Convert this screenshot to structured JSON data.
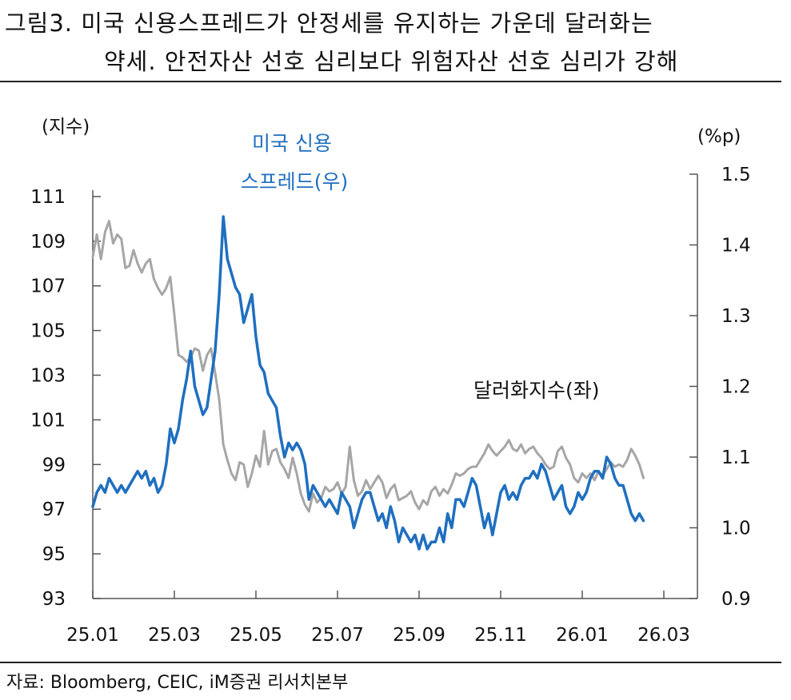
{
  "header": {
    "line1": "그림3.  미국  신용스프레드가  안정세를  유지하는  가운데  달러화는",
    "line2": "약세. 안전자산 선호 심리보다 위험자산 선호 심리가 강해"
  },
  "footer": {
    "source": "자료: Bloomberg, CEIC, iM증권 리서치본부"
  },
  "colors": {
    "dxy": "#a6a6a6",
    "spread": "#1f6fc0",
    "axis": "#555555",
    "text": "#111111"
  },
  "chart_data": {
    "type": "line",
    "x_ticks": [
      "25.01",
      "25.03",
      "25.05",
      "25.07",
      "25.09",
      "25.11",
      "26.01",
      "26.03"
    ],
    "y_left": {
      "label": "(지수)",
      "ticks": [
        "111",
        "109",
        "107",
        "105",
        "103",
        "101",
        "99",
        "97",
        "95",
        "93"
      ],
      "range": [
        93,
        112
      ]
    },
    "y_right": {
      "label": "(%p)",
      "ticks": [
        "1.5",
        "1.4",
        "1.3",
        "1.2",
        "1.1",
        "1.0",
        "0.9"
      ],
      "range": [
        0.9,
        1.5
      ]
    },
    "x_range_months": [
      0,
      15
    ],
    "series": [
      {
        "name": "달러화지수(좌)",
        "label": "달러화지수(좌)",
        "axis": "left",
        "x": [
          0.0,
          0.1,
          0.2,
          0.3,
          0.4,
          0.5,
          0.6,
          0.7,
          0.8,
          0.9,
          1.0,
          1.1,
          1.2,
          1.3,
          1.4,
          1.5,
          1.6,
          1.7,
          1.8,
          1.9,
          2.0,
          2.1,
          2.2,
          2.3,
          2.4,
          2.5,
          2.6,
          2.7,
          2.8,
          2.9,
          3.0,
          3.1,
          3.2,
          3.3,
          3.4,
          3.5,
          3.6,
          3.7,
          3.8,
          3.9,
          4.0,
          4.1,
          4.2,
          4.3,
          4.4,
          4.5,
          4.6,
          4.7,
          4.8,
          4.9,
          5.0,
          5.1,
          5.2,
          5.3,
          5.4,
          5.5,
          5.6,
          5.7,
          5.8,
          5.9,
          6.0,
          6.1,
          6.2,
          6.3,
          6.4,
          6.5,
          6.6,
          6.7,
          6.8,
          6.9,
          7.0,
          7.1,
          7.2,
          7.3,
          7.4,
          7.5,
          7.6,
          7.7,
          7.8,
          7.9,
          8.0,
          8.1,
          8.2,
          8.3,
          8.4,
          8.5,
          8.6,
          8.7,
          8.8,
          8.9,
          9.0,
          9.1,
          9.2,
          9.3,
          9.4,
          9.5,
          9.6,
          9.7,
          9.8,
          9.9,
          10.0,
          10.1,
          10.2,
          10.3,
          10.4,
          10.5,
          10.6,
          10.7,
          10.8,
          10.9,
          11.0,
          11.1,
          11.2,
          11.3,
          11.4,
          11.5,
          11.6,
          11.7,
          11.8,
          11.9,
          12.0,
          12.1,
          12.2,
          12.3,
          12.4,
          12.5,
          12.6,
          12.7,
          12.8,
          12.9,
          13.0,
          13.1,
          13.2,
          13.3,
          13.4,
          13.5
        ],
        "values": [
          108.3,
          109.3,
          108.2,
          109.4,
          109.9,
          108.9,
          109.3,
          109.1,
          107.8,
          107.9,
          108.6,
          108.0,
          107.6,
          108.0,
          108.2,
          107.3,
          106.9,
          106.6,
          106.9,
          107.4,
          105.7,
          103.9,
          103.8,
          103.6,
          103.8,
          104.2,
          104.1,
          103.2,
          103.9,
          104.2,
          103.1,
          101.9,
          99.9,
          99.2,
          98.6,
          98.3,
          99.1,
          99.0,
          98.0,
          98.6,
          99.4,
          98.9,
          100.5,
          99.0,
          99.6,
          99.7,
          99.1,
          98.8,
          98.4,
          99.3,
          98.6,
          97.7,
          97.2,
          96.9,
          97.7,
          97.3,
          97.5,
          98.0,
          97.8,
          97.9,
          98.2,
          97.7,
          98.0,
          99.8,
          98.3,
          97.6,
          97.8,
          98.3,
          97.9,
          98.2,
          98.5,
          98.2,
          97.5,
          97.9,
          98.1,
          97.4,
          97.5,
          97.6,
          97.8,
          97.3,
          97.0,
          97.4,
          97.2,
          97.8,
          98.0,
          97.6,
          97.9,
          97.7,
          98.1,
          98.6,
          98.5,
          98.6,
          98.8,
          98.9,
          98.9,
          99.2,
          99.5,
          99.9,
          99.6,
          99.4,
          99.6,
          99.8,
          100.1,
          99.7,
          99.6,
          99.9,
          99.5,
          99.7,
          99.8,
          99.5,
          99.3,
          99.0,
          98.8,
          98.9,
          99.6,
          99.8,
          99.3,
          99.0,
          98.4,
          98.2,
          98.6,
          98.4,
          98.6,
          98.3,
          98.7,
          98.5,
          98.8,
          99.1,
          98.9,
          99.0,
          98.9,
          99.2,
          99.7,
          99.4,
          99.0,
          98.4
        ]
      },
      {
        "name": "미국 신용 스프레드(우)",
        "label_line1": "미국 신용",
        "label_line2": "스프레드(우)",
        "axis": "right",
        "x": [
          0.0,
          0.1,
          0.2,
          0.3,
          0.4,
          0.5,
          0.6,
          0.7,
          0.8,
          0.9,
          1.0,
          1.1,
          1.2,
          1.3,
          1.4,
          1.5,
          1.6,
          1.7,
          1.8,
          1.9,
          2.0,
          2.1,
          2.2,
          2.3,
          2.4,
          2.5,
          2.6,
          2.7,
          2.8,
          2.9,
          3.0,
          3.1,
          3.2,
          3.3,
          3.4,
          3.5,
          3.6,
          3.7,
          3.8,
          3.9,
          4.0,
          4.1,
          4.2,
          4.3,
          4.4,
          4.5,
          4.6,
          4.7,
          4.8,
          4.9,
          5.0,
          5.1,
          5.2,
          5.3,
          5.4,
          5.5,
          5.6,
          5.7,
          5.8,
          5.9,
          6.0,
          6.1,
          6.2,
          6.3,
          6.4,
          6.5,
          6.6,
          6.7,
          6.8,
          6.9,
          7.0,
          7.1,
          7.2,
          7.3,
          7.4,
          7.5,
          7.6,
          7.7,
          7.8,
          7.9,
          8.0,
          8.1,
          8.2,
          8.3,
          8.4,
          8.5,
          8.6,
          8.7,
          8.8,
          8.9,
          9.0,
          9.1,
          9.2,
          9.3,
          9.4,
          9.5,
          9.6,
          9.7,
          9.8,
          9.9,
          10.0,
          10.1,
          10.2,
          10.3,
          10.4,
          10.5,
          10.6,
          10.7,
          10.8,
          10.9,
          11.0,
          11.1,
          11.2,
          11.3,
          11.4,
          11.5,
          11.6,
          11.7,
          11.8,
          11.9,
          12.0,
          12.1,
          12.2,
          12.3,
          12.4,
          12.5,
          12.6,
          12.7,
          12.8,
          12.9,
          13.0,
          13.1,
          13.2,
          13.3,
          13.4,
          13.5
        ],
        "values": [
          1.03,
          1.05,
          1.06,
          1.05,
          1.07,
          1.06,
          1.05,
          1.06,
          1.05,
          1.06,
          1.07,
          1.08,
          1.07,
          1.08,
          1.06,
          1.07,
          1.05,
          1.06,
          1.09,
          1.14,
          1.12,
          1.14,
          1.18,
          1.21,
          1.25,
          1.2,
          1.18,
          1.16,
          1.17,
          1.21,
          1.25,
          1.33,
          1.44,
          1.38,
          1.36,
          1.34,
          1.33,
          1.29,
          1.31,
          1.33,
          1.27,
          1.23,
          1.22,
          1.19,
          1.18,
          1.17,
          1.13,
          1.1,
          1.12,
          1.11,
          1.12,
          1.11,
          1.09,
          1.04,
          1.06,
          1.05,
          1.04,
          1.03,
          1.04,
          1.03,
          1.02,
          1.05,
          1.04,
          1.03,
          1.0,
          1.02,
          1.04,
          1.05,
          1.05,
          1.03,
          1.01,
          1.02,
          1.0,
          1.03,
          1.01,
          0.98,
          1.0,
          0.99,
          0.98,
          0.99,
          0.97,
          0.99,
          0.97,
          0.98,
          0.98,
          1.0,
          0.98,
          1.02,
          1.0,
          1.04,
          1.04,
          1.03,
          1.05,
          1.07,
          1.06,
          1.03,
          1.0,
          1.02,
          0.99,
          1.02,
          1.05,
          1.06,
          1.04,
          1.05,
          1.04,
          1.06,
          1.07,
          1.07,
          1.08,
          1.07,
          1.09,
          1.08,
          1.06,
          1.04,
          1.05,
          1.06,
          1.03,
          1.02,
          1.03,
          1.05,
          1.04,
          1.05,
          1.07,
          1.08,
          1.08,
          1.07,
          1.1,
          1.09,
          1.07,
          1.06,
          1.06,
          1.04,
          1.02,
          1.01,
          1.02,
          1.01
        ]
      }
    ]
  }
}
